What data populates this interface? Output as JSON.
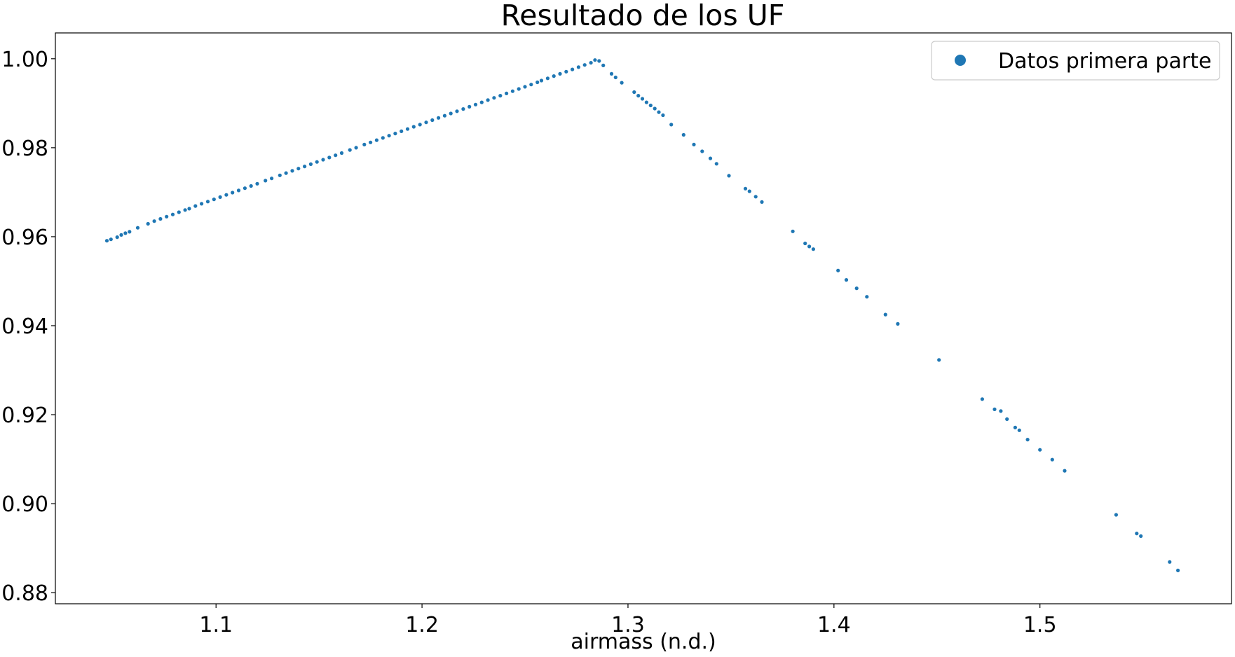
{
  "chart_data": {
    "type": "scatter",
    "title": "Resultado de los UF",
    "xlabel": "airmass (n.d.)",
    "ylabel": "",
    "xlim": [
      1.022,
      1.593
    ],
    "ylim": [
      0.8775,
      1.0058
    ],
    "xticks": [
      1.1,
      1.2,
      1.3,
      1.4,
      1.5
    ],
    "xtick_labels": [
      "1.1",
      "1.2",
      "1.3",
      "1.4",
      "1.5"
    ],
    "yticks": [
      0.88,
      0.9,
      0.92,
      0.94,
      0.96,
      0.98,
      1.0
    ],
    "ytick_labels": [
      "0.88",
      "0.90",
      "0.92",
      "0.94",
      "0.96",
      "0.98",
      "1.00"
    ],
    "grid": false,
    "legend_position": "top-right",
    "colors": {
      "series": "#1f77b4",
      "axes": "#000000",
      "background": "#ffffff"
    },
    "series": [
      {
        "name": "Datos primera parte",
        "points": [
          [
            1.047,
            0.9591
          ],
          [
            1.049,
            0.9594
          ],
          [
            1.052,
            0.9599
          ],
          [
            1.054,
            0.9604
          ],
          [
            1.056,
            0.9608
          ],
          [
            1.058,
            0.9611
          ],
          [
            1.062,
            0.962
          ],
          [
            1.067,
            0.9629
          ],
          [
            1.07,
            0.9635
          ],
          [
            1.073,
            0.964
          ],
          [
            1.076,
            0.9645
          ],
          [
            1.079,
            0.965
          ],
          [
            1.082,
            0.9655
          ],
          [
            1.085,
            0.966
          ],
          [
            1.087,
            0.9663
          ],
          [
            1.09,
            0.9669
          ],
          [
            1.093,
            0.9674
          ],
          [
            1.096,
            0.9679
          ],
          [
            1.099,
            0.9684
          ],
          [
            1.102,
            0.9689
          ],
          [
            1.105,
            0.9694
          ],
          [
            1.108,
            0.9699
          ],
          [
            1.111,
            0.9704
          ],
          [
            1.114,
            0.9709
          ],
          [
            1.117,
            0.9714
          ],
          [
            1.12,
            0.9719
          ],
          [
            1.124,
            0.9726
          ],
          [
            1.127,
            0.9731
          ],
          [
            1.131,
            0.9738
          ],
          [
            1.134,
            0.9743
          ],
          [
            1.137,
            0.9748
          ],
          [
            1.14,
            0.9753
          ],
          [
            1.143,
            0.9758
          ],
          [
            1.146,
            0.9763
          ],
          [
            1.149,
            0.9768
          ],
          [
            1.152,
            0.9773
          ],
          [
            1.155,
            0.9778
          ],
          [
            1.158,
            0.9783
          ],
          [
            1.161,
            0.9788
          ],
          [
            1.165,
            0.9795
          ],
          [
            1.168,
            0.98
          ],
          [
            1.172,
            0.9807
          ],
          [
            1.175,
            0.9812
          ],
          [
            1.178,
            0.9817
          ],
          [
            1.181,
            0.9822
          ],
          [
            1.184,
            0.9827
          ],
          [
            1.187,
            0.9832
          ],
          [
            1.19,
            0.9837
          ],
          [
            1.193,
            0.9842
          ],
          [
            1.196,
            0.9847
          ],
          [
            1.199,
            0.9852
          ],
          [
            1.202,
            0.9857
          ],
          [
            1.205,
            0.9862
          ],
          [
            1.208,
            0.9867
          ],
          [
            1.211,
            0.9872
          ],
          [
            1.214,
            0.9877
          ],
          [
            1.217,
            0.9882
          ],
          [
            1.22,
            0.9887
          ],
          [
            1.223,
            0.9892
          ],
          [
            1.226,
            0.9897
          ],
          [
            1.229,
            0.9902
          ],
          [
            1.232,
            0.9907
          ],
          [
            1.235,
            0.9912
          ],
          [
            1.238,
            0.9917
          ],
          [
            1.241,
            0.9922
          ],
          [
            1.244,
            0.9927
          ],
          [
            1.247,
            0.9932
          ],
          [
            1.25,
            0.9937
          ],
          [
            1.253,
            0.9942
          ],
          [
            1.256,
            0.9947
          ],
          [
            1.258,
            0.9951
          ],
          [
            1.261,
            0.9956
          ],
          [
            1.264,
            0.9961
          ],
          [
            1.267,
            0.9966
          ],
          [
            1.27,
            0.9971
          ],
          [
            1.273,
            0.9976
          ],
          [
            1.276,
            0.9981
          ],
          [
            1.279,
            0.9986
          ],
          [
            1.282,
            0.9991
          ],
          [
            1.284,
            0.9997
          ],
          [
            1.286,
            0.9995
          ],
          [
            1.288,
            0.9985
          ],
          [
            1.292,
            0.9966
          ],
          [
            1.294,
            0.9958
          ],
          [
            1.297,
            0.9946
          ],
          [
            1.303,
            0.9925
          ],
          [
            1.305,
            0.9917
          ],
          [
            1.307,
            0.991
          ],
          [
            1.309,
            0.9902
          ],
          [
            1.311,
            0.9895
          ],
          [
            1.313,
            0.9888
          ],
          [
            1.315,
            0.988
          ],
          [
            1.317,
            0.9873
          ],
          [
            1.321,
            0.9852
          ],
          [
            1.327,
            0.9829
          ],
          [
            1.332,
            0.9807
          ],
          [
            1.336,
            0.9792
          ],
          [
            1.34,
            0.9776
          ],
          [
            1.343,
            0.9764
          ],
          [
            1.349,
            0.9737
          ],
          [
            1.357,
            0.9708
          ],
          [
            1.359,
            0.9702
          ],
          [
            1.362,
            0.969
          ],
          [
            1.365,
            0.9678
          ],
          [
            1.38,
            0.9612
          ],
          [
            1.386,
            0.9585
          ],
          [
            1.388,
            0.9578
          ],
          [
            1.39,
            0.9572
          ],
          [
            1.402,
            0.9524
          ],
          [
            1.406,
            0.9503
          ],
          [
            1.411,
            0.9484
          ],
          [
            1.416,
            0.9465
          ],
          [
            1.425,
            0.9425
          ],
          [
            1.431,
            0.9404
          ],
          [
            1.451,
            0.9323
          ],
          [
            1.472,
            0.9235
          ],
          [
            1.478,
            0.9212
          ],
          [
            1.481,
            0.9208
          ],
          [
            1.484,
            0.919
          ],
          [
            1.488,
            0.9171
          ],
          [
            1.49,
            0.9165
          ],
          [
            1.494,
            0.9144
          ],
          [
            1.5,
            0.9121
          ],
          [
            1.506,
            0.9099
          ],
          [
            1.512,
            0.9074
          ],
          [
            1.537,
            0.8975
          ],
          [
            1.547,
            0.8933
          ],
          [
            1.549,
            0.8927
          ],
          [
            1.563,
            0.8869
          ],
          [
            1.567,
            0.885
          ]
        ]
      }
    ]
  }
}
